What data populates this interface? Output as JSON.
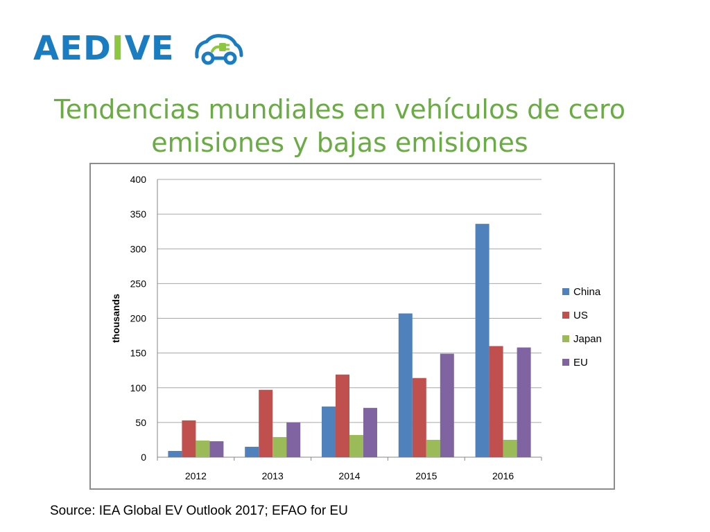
{
  "logo": {
    "text_main": "AED",
    "text_accent": "I",
    "text_end": "VE",
    "icon": "car-plug-icon",
    "colors": {
      "primary": "#1a7cc1",
      "accent": "#8dc63f"
    }
  },
  "title": {
    "line1": "Tendencias mundiales en vehículos de cero",
    "line2": "emisiones y bajas emisiones",
    "color": "#6aab45"
  },
  "source": "Source: IEA Global EV Outlook 2017; EFAO for EU",
  "chart_data": {
    "type": "bar",
    "title": "",
    "xlabel": "",
    "ylabel": "thousands",
    "ylim": [
      0,
      400
    ],
    "yticks": [
      0,
      50,
      100,
      150,
      200,
      250,
      300,
      350,
      400
    ],
    "grid": true,
    "legend_position": "right",
    "categories": [
      "2012",
      "2013",
      "2014",
      "2015",
      "2016"
    ],
    "series": [
      {
        "name": "China",
        "color": "#4f81bd",
        "values": [
          9,
          15,
          73,
          207,
          336
        ]
      },
      {
        "name": "US",
        "color": "#c0504d",
        "values": [
          53,
          97,
          119,
          114,
          160
        ]
      },
      {
        "name": "Japan",
        "color": "#9bbb59",
        "values": [
          24,
          29,
          32,
          25,
          25
        ]
      },
      {
        "name": "EU",
        "color": "#8064a2",
        "values": [
          23,
          50,
          71,
          149,
          158
        ]
      }
    ]
  }
}
